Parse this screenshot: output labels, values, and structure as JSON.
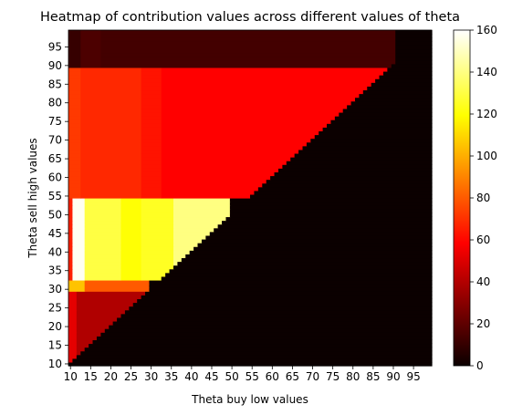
{
  "chart_data": {
    "type": "heatmap",
    "title": "Heatmap of contribution values across different values of theta",
    "xlabel": "Theta buy low values",
    "ylabel": "Theta sell high values",
    "colormap": "hot",
    "x_tick_labels": [
      "10",
      "15",
      "20",
      "25",
      "30",
      "35",
      "40",
      "45",
      "50",
      "55",
      "60",
      "65",
      "70",
      "75",
      "80",
      "85",
      "90",
      "95"
    ],
    "y_tick_labels": [
      "10",
      "15",
      "20",
      "25",
      "30",
      "35",
      "40",
      "45",
      "50",
      "55",
      "60",
      "65",
      "70",
      "75",
      "80",
      "85",
      "90",
      "95"
    ],
    "grid_start": 10,
    "grid_end": 99,
    "colorbar": {
      "min": 0,
      "max": 160,
      "ticks": [
        "0",
        "20",
        "40",
        "60",
        "80",
        "100",
        "120",
        "140",
        "160"
      ]
    },
    "regions_note_free": true,
    "value_bands": {
      "sell_range_90_99": [
        {
          "buy_from": 10,
          "buy_to": 12,
          "value": 10
        },
        {
          "buy_from": 13,
          "buy_to": 17,
          "value": 15
        },
        {
          "buy_from": 18,
          "buy_to": 90,
          "value": 13
        }
      ],
      "sell_range_55_89": [
        {
          "buy_from": 10,
          "buy_to": 12,
          "value": 72
        },
        {
          "buy_from": 13,
          "buy_to": 17,
          "value": 68
        },
        {
          "buy_from": 18,
          "buy_to": 27,
          "value": 68
        },
        {
          "buy_from": 28,
          "buy_to": 32,
          "value": 63
        },
        {
          "buy_from": 33,
          "buy_to": 89,
          "value": 56
        }
      ],
      "sell_range_33_54": [
        {
          "buy_from": 10,
          "buy_to": 10,
          "value": 66
        },
        {
          "buy_from": 11,
          "buy_to": 13,
          "value": 158
        },
        {
          "buy_from": 14,
          "buy_to": 22,
          "value": 130
        },
        {
          "buy_from": 23,
          "buy_to": 27,
          "value": 120
        },
        {
          "buy_from": 28,
          "buy_to": 35,
          "value": 125
        },
        {
          "buy_from": 36,
          "buy_to": 49,
          "value": 140
        }
      ],
      "sell_range_30_32": [
        {
          "buy_from": 10,
          "buy_to": 13,
          "value": 105
        },
        {
          "buy_from": 14,
          "buy_to": 29,
          "value": 80
        }
      ],
      "sell_range_10_29": [
        {
          "buy_from": 10,
          "buy_to": 11,
          "value": 50
        },
        {
          "buy_from": 12,
          "buy_to": 28,
          "value": 38
        }
      ]
    }
  }
}
